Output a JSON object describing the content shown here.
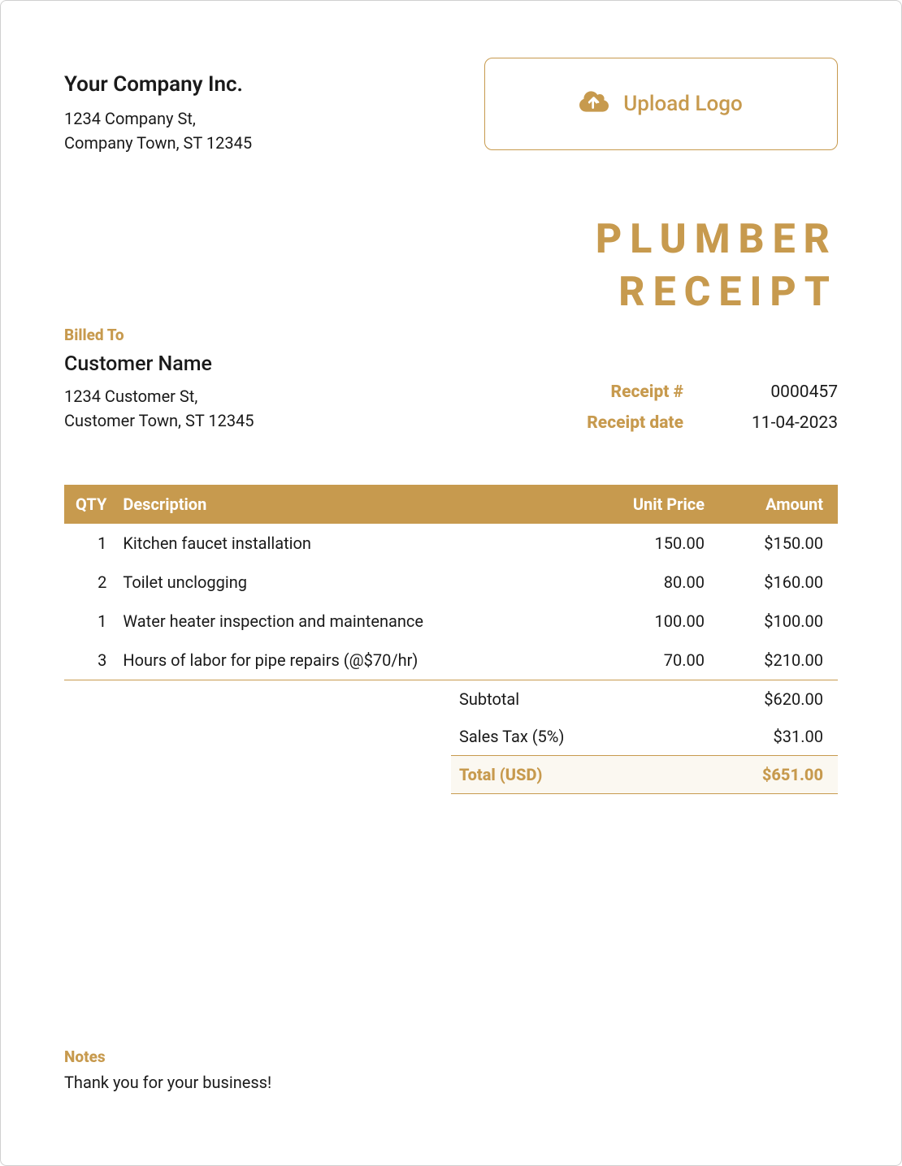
{
  "theme": {
    "accent": "#c79a4e",
    "text": "#1a1a1a",
    "grand_bg": "#fbf8f1",
    "border": "#d0d0d0"
  },
  "company": {
    "name": "Your Company Inc.",
    "addr1": "1234 Company St,",
    "addr2": "Company Town, ST 12345"
  },
  "upload_logo_label": "Upload Logo",
  "title_line1": "PLUMBER",
  "title_line2": "RECEIPT",
  "billed_to_label": "Billed To",
  "customer": {
    "name": "Customer Name",
    "addr1": "1234 Customer St,",
    "addr2": "Customer Town, ST 12345"
  },
  "meta": {
    "receipt_no_label": "Receipt #",
    "receipt_no": "0000457",
    "receipt_date_label": "Receipt date",
    "receipt_date": "11-04-2023"
  },
  "table": {
    "columns": {
      "qty": "QTY",
      "desc": "Description",
      "price": "Unit Price",
      "amount": "Amount"
    },
    "rows": [
      {
        "qty": "1",
        "desc": "Kitchen faucet installation",
        "price": "150.00",
        "amount": "$150.00"
      },
      {
        "qty": "2",
        "desc": "Toilet unclogging",
        "price": "80.00",
        "amount": "$160.00"
      },
      {
        "qty": "1",
        "desc": "Water heater inspection and maintenance",
        "price": "100.00",
        "amount": "$100.00"
      },
      {
        "qty": "3",
        "desc": "Hours of labor for pipe repairs (@$70/hr)",
        "price": "70.00",
        "amount": "$210.00"
      }
    ]
  },
  "totals": {
    "subtotal_label": "Subtotal",
    "subtotal": "$620.00",
    "tax_label": "Sales Tax (5%)",
    "tax": "$31.00",
    "grand_label": "Total (USD)",
    "grand": "$651.00"
  },
  "notes": {
    "label": "Notes",
    "text": "Thank you for your business!"
  }
}
